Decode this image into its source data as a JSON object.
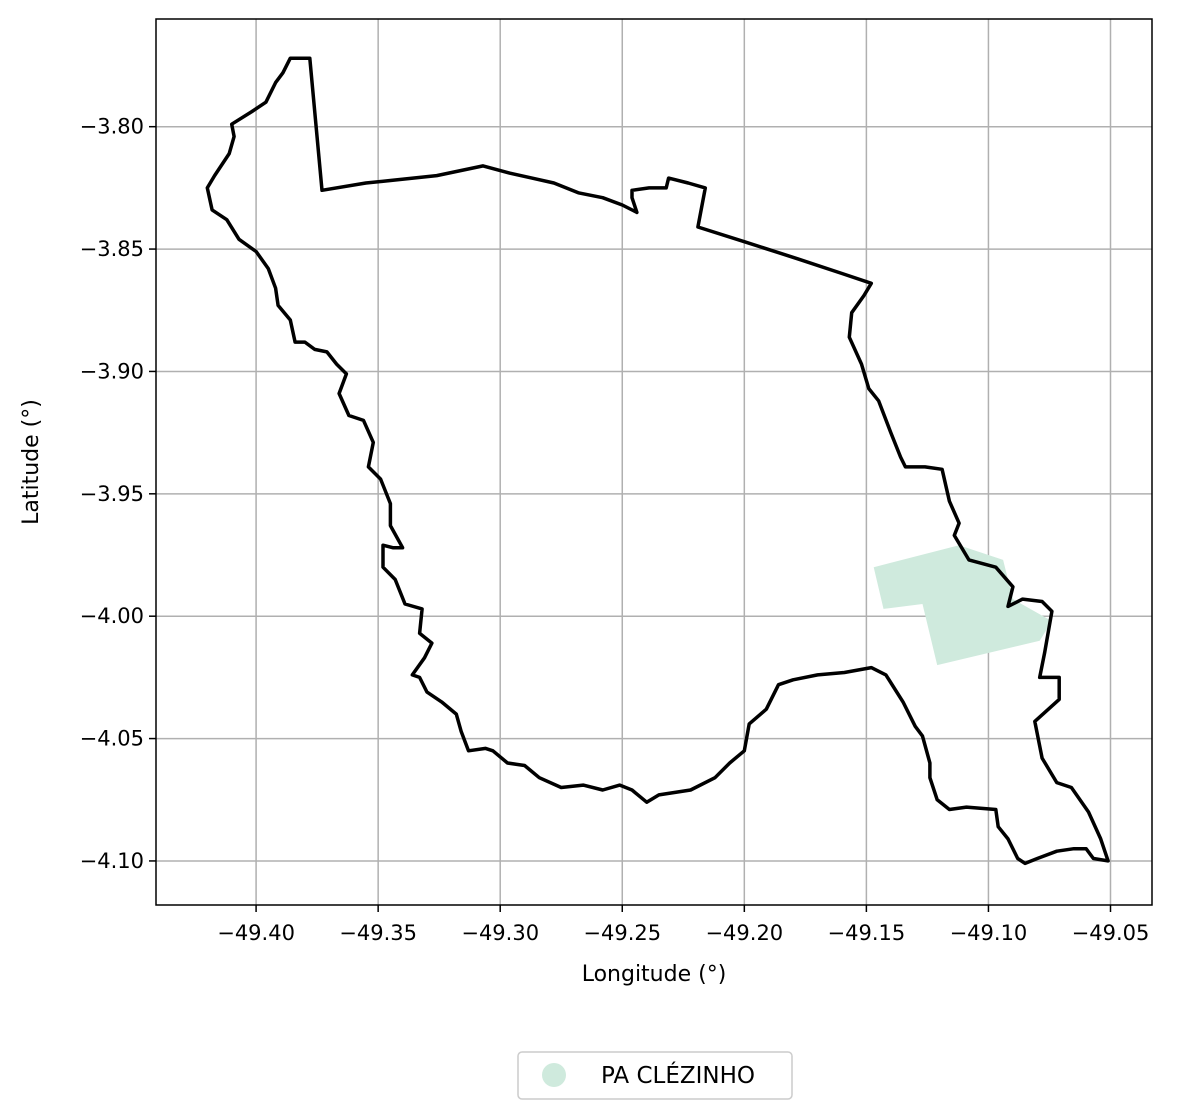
{
  "chart_data": {
    "type": "map",
    "title": "",
    "xlabel": "Longitude (°)",
    "ylabel": "Latitude (°)",
    "xlim": [
      -49.441,
      -49.033
    ],
    "ylim": [
      -4.118,
      -3.756
    ],
    "grid": true,
    "x_ticks": [
      -49.4,
      -49.35,
      -49.3,
      -49.25,
      -49.2,
      -49.15,
      -49.1,
      -49.05
    ],
    "x_tick_labels": [
      "−49.40",
      "−49.35",
      "−49.30",
      "−49.25",
      "−49.20",
      "−49.15",
      "−49.10",
      "−49.05"
    ],
    "y_ticks": [
      -3.8,
      -3.85,
      -3.9,
      -3.95,
      -4.0,
      -4.05,
      -4.1
    ],
    "y_tick_labels": [
      "−3.80",
      "−3.85",
      "−3.90",
      "−3.95",
      "−4.00",
      "−4.05",
      "−4.10"
    ],
    "legend_position": "bottom-center",
    "boundary": {
      "color": "#000000",
      "coordinates": [
        [
          -49.386,
          -3.772
        ],
        [
          -49.378,
          -3.772
        ],
        [
          -49.373,
          -3.826
        ],
        [
          -49.355,
          -3.823
        ],
        [
          -49.345,
          -3.822
        ],
        [
          -49.326,
          -3.82
        ],
        [
          -49.307,
          -3.816
        ],
        [
          -49.296,
          -3.819
        ],
        [
          -49.287,
          -3.821
        ],
        [
          -49.278,
          -3.823
        ],
        [
          -49.268,
          -3.827
        ],
        [
          -49.258,
          -3.829
        ],
        [
          -49.25,
          -3.832
        ],
        [
          -49.244,
          -3.835
        ],
        [
          -49.246,
          -3.829
        ],
        [
          -49.246,
          -3.826
        ],
        [
          -49.239,
          -3.825
        ],
        [
          -49.232,
          -3.825
        ],
        [
          -49.231,
          -3.821
        ],
        [
          -49.223,
          -3.823
        ],
        [
          -49.216,
          -3.825
        ],
        [
          -49.219,
          -3.841
        ],
        [
          -49.2,
          -3.847
        ],
        [
          -49.178,
          -3.854
        ],
        [
          -49.16,
          -3.86
        ],
        [
          -49.148,
          -3.864
        ],
        [
          -49.151,
          -3.869
        ],
        [
          -49.156,
          -3.876
        ],
        [
          -49.157,
          -3.886
        ],
        [
          -49.152,
          -3.897
        ],
        [
          -49.149,
          -3.907
        ],
        [
          -49.145,
          -3.912
        ],
        [
          -49.14,
          -3.925
        ],
        [
          -49.136,
          -3.935
        ],
        [
          -49.134,
          -3.939
        ],
        [
          -49.126,
          -3.939
        ],
        [
          -49.119,
          -3.94
        ],
        [
          -49.116,
          -3.953
        ],
        [
          -49.112,
          -3.962
        ],
        [
          -49.114,
          -3.967
        ],
        [
          -49.108,
          -3.977
        ],
        [
          -49.097,
          -3.98
        ],
        [
          -49.09,
          -3.988
        ],
        [
          -49.092,
          -3.996
        ],
        [
          -49.086,
          -3.993
        ],
        [
          -49.078,
          -3.994
        ],
        [
          -49.074,
          -3.998
        ],
        [
          -49.077,
          -4.015
        ],
        [
          -49.079,
          -4.025
        ],
        [
          -49.071,
          -4.025
        ],
        [
          -49.071,
          -4.034
        ],
        [
          -49.081,
          -4.043
        ],
        [
          -49.078,
          -4.058
        ],
        [
          -49.072,
          -4.068
        ],
        [
          -49.066,
          -4.07
        ],
        [
          -49.059,
          -4.08
        ],
        [
          -49.054,
          -4.091
        ],
        [
          -49.051,
          -4.1
        ],
        [
          -49.057,
          -4.099
        ],
        [
          -49.06,
          -4.095
        ],
        [
          -49.065,
          -4.095
        ],
        [
          -49.072,
          -4.096
        ],
        [
          -49.08,
          -4.099
        ],
        [
          -49.085,
          -4.101
        ],
        [
          -49.088,
          -4.099
        ],
        [
          -49.092,
          -4.091
        ],
        [
          -49.096,
          -4.086
        ],
        [
          -49.097,
          -4.079
        ],
        [
          -49.109,
          -4.078
        ],
        [
          -49.116,
          -4.079
        ],
        [
          -49.121,
          -4.075
        ],
        [
          -49.124,
          -4.066
        ],
        [
          -49.124,
          -4.06
        ],
        [
          -49.127,
          -4.049
        ],
        [
          -49.13,
          -4.045
        ],
        [
          -49.135,
          -4.035
        ],
        [
          -49.142,
          -4.024
        ],
        [
          -49.148,
          -4.021
        ],
        [
          -49.159,
          -4.023
        ],
        [
          -49.17,
          -4.024
        ],
        [
          -49.18,
          -4.026
        ],
        [
          -49.186,
          -4.028
        ],
        [
          -49.191,
          -4.038
        ],
        [
          -49.198,
          -4.044
        ],
        [
          -49.2,
          -4.055
        ],
        [
          -49.206,
          -4.06
        ],
        [
          -49.212,
          -4.066
        ],
        [
          -49.222,
          -4.071
        ],
        [
          -49.235,
          -4.073
        ],
        [
          -49.24,
          -4.076
        ],
        [
          -49.246,
          -4.071
        ],
        [
          -49.251,
          -4.069
        ],
        [
          -49.258,
          -4.071
        ],
        [
          -49.266,
          -4.069
        ],
        [
          -49.275,
          -4.07
        ],
        [
          -49.284,
          -4.066
        ],
        [
          -49.29,
          -4.061
        ],
        [
          -49.297,
          -4.06
        ],
        [
          -49.303,
          -4.055
        ],
        [
          -49.306,
          -4.054
        ],
        [
          -49.313,
          -4.055
        ],
        [
          -49.316,
          -4.047
        ],
        [
          -49.318,
          -4.04
        ],
        [
          -49.324,
          -4.035
        ],
        [
          -49.33,
          -4.031
        ],
        [
          -49.333,
          -4.025
        ],
        [
          -49.336,
          -4.024
        ],
        [
          -49.331,
          -4.017
        ],
        [
          -49.328,
          -4.011
        ],
        [
          -49.333,
          -4.007
        ],
        [
          -49.332,
          -3.997
        ],
        [
          -49.339,
          -3.995
        ],
        [
          -49.343,
          -3.985
        ],
        [
          -49.348,
          -3.98
        ],
        [
          -49.348,
          -3.971
        ],
        [
          -49.344,
          -3.972
        ],
        [
          -49.34,
          -3.972
        ],
        [
          -49.345,
          -3.963
        ],
        [
          -49.345,
          -3.954
        ],
        [
          -49.349,
          -3.944
        ],
        [
          -49.354,
          -3.939
        ],
        [
          -49.352,
          -3.929
        ],
        [
          -49.356,
          -3.92
        ],
        [
          -49.362,
          -3.918
        ],
        [
          -49.366,
          -3.909
        ],
        [
          -49.363,
          -3.901
        ],
        [
          -49.367,
          -3.897
        ],
        [
          -49.371,
          -3.892
        ],
        [
          -49.376,
          -3.891
        ],
        [
          -49.38,
          -3.888
        ],
        [
          -49.384,
          -3.888
        ],
        [
          -49.386,
          -3.879
        ],
        [
          -49.391,
          -3.873
        ],
        [
          -49.392,
          -3.866
        ],
        [
          -49.395,
          -3.858
        ],
        [
          -49.4,
          -3.851
        ],
        [
          -49.407,
          -3.846
        ],
        [
          -49.412,
          -3.838
        ],
        [
          -49.418,
          -3.834
        ],
        [
          -49.42,
          -3.825
        ],
        [
          -49.417,
          -3.82
        ],
        [
          -49.411,
          -3.811
        ],
        [
          -49.409,
          -3.804
        ],
        [
          -49.41,
          -3.799
        ],
        [
          -49.402,
          -3.794
        ],
        [
          -49.396,
          -3.79
        ],
        [
          -49.392,
          -3.782
        ],
        [
          -49.389,
          -3.778
        ],
        [
          -49.386,
          -3.772
        ]
      ]
    },
    "series": [
      {
        "name": "PA CLÉZINHO",
        "color": "#cfeadd",
        "coordinates": [
          [
            -49.147,
            -3.98
          ],
          [
            -49.112,
            -3.971
          ],
          [
            -49.094,
            -3.977
          ],
          [
            -49.09,
            -3.993
          ],
          [
            -49.074,
            -4.002
          ],
          [
            -49.079,
            -4.01
          ],
          [
            -49.121,
            -4.02
          ],
          [
            -49.127,
            -3.995
          ],
          [
            -49.143,
            -3.997
          ]
        ]
      }
    ]
  }
}
